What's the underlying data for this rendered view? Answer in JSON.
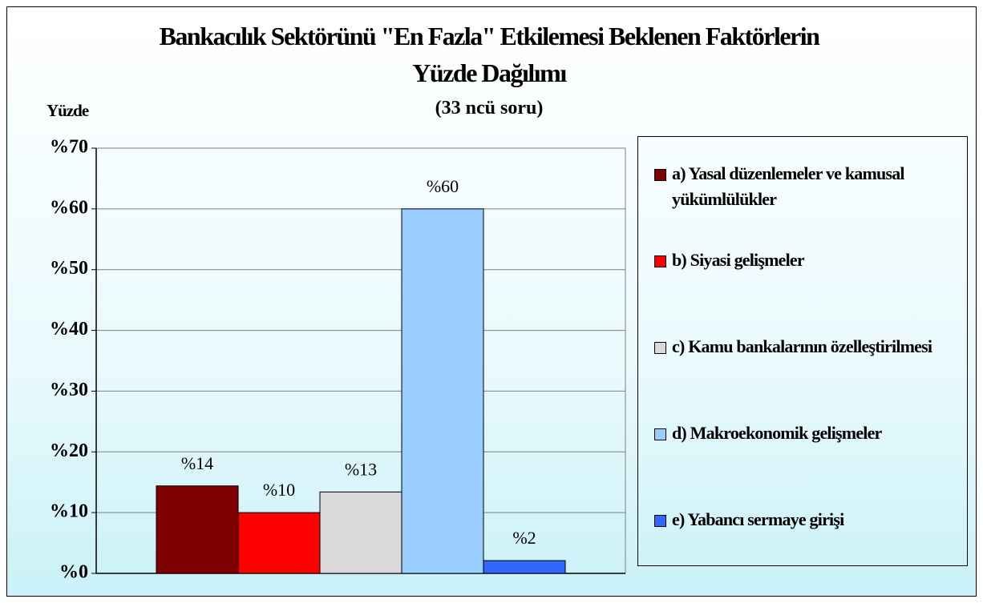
{
  "chart_data": {
    "type": "bar",
    "title": "Bankacılık Sektörünü \"En Fazla\" Etkilemesi Beklenen Faktörlerin Yüzde Dağılımı",
    "subtitle": "(33 ncü soru)",
    "y_label": "Yüzde",
    "series": [
      {
        "name": "a) Yasal düzenlemeler ve kamusal yükümlülükler",
        "color": "#800000",
        "values": [
          14.4
        ],
        "value_labels": [
          "%14"
        ]
      },
      {
        "name": "b) Siyasi gelişmeler",
        "color": "#ff0000",
        "values": [
          10.0
        ],
        "value_labels": [
          "%10"
        ]
      },
      {
        "name": "c) Kamu bankalarının özelleştirilmesi",
        "color": "#d9d9d9",
        "values": [
          13.4
        ],
        "value_labels": [
          "%13"
        ]
      },
      {
        "name": "d) Makroekonomik gelişmeler",
        "color": "#99ccff",
        "values": [
          60.0
        ],
        "value_labels": [
          "%60"
        ]
      },
      {
        "name": "e) Yabancı sermaye girişi",
        "color": "#3366ff",
        "values": [
          2.1
        ],
        "value_labels": [
          "%2"
        ]
      }
    ],
    "ylim": [
      0,
      70
    ],
    "yticks": [
      {
        "value": 0,
        "label": "%0"
      },
      {
        "value": 10,
        "label": "%10"
      },
      {
        "value": 20,
        "label": "%20"
      },
      {
        "value": 30,
        "label": "%30"
      },
      {
        "value": 40,
        "label": "%40"
      },
      {
        "value": 50,
        "label": "%50"
      },
      {
        "value": 60,
        "label": "%60"
      },
      {
        "value": 70,
        "label": "%70"
      }
    ],
    "grid": true
  }
}
